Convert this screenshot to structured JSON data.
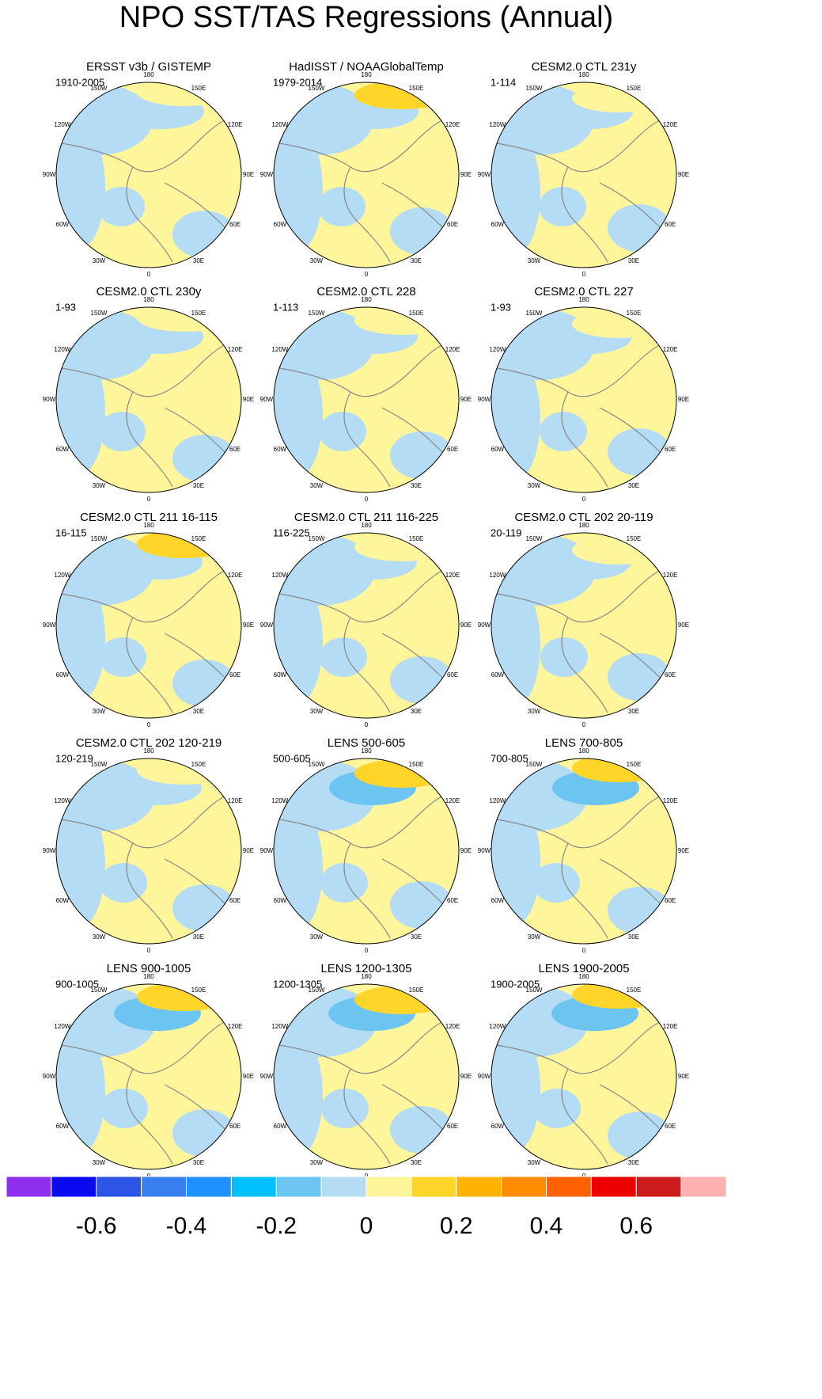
{
  "title": "NPO SST/TAS Regressions (Annual)",
  "panels": [
    {
      "title": "ERSST v3b / GISTEMP",
      "period": "1910-2005"
    },
    {
      "title": "HadISST / NOAAGlobalTemp",
      "period": "1979-2014"
    },
    {
      "title": "CESM2.0 CTL 231y",
      "period": "1-114"
    },
    {
      "title": "CESM2.0 CTL 230y",
      "period": "1-93"
    },
    {
      "title": "CESM2.0 CTL 228",
      "period": "1-113"
    },
    {
      "title": "CESM2.0 CTL 227",
      "period": "1-93"
    },
    {
      "title": "CESM2.0 CTL 211 16-115",
      "period": "16-115"
    },
    {
      "title": "CESM2.0 CTL 211 116-225",
      "period": "116-225"
    },
    {
      "title": "CESM2.0 CTL 202 20-119",
      "period": "20-119"
    },
    {
      "title": "CESM2.0 CTL 202 120-219",
      "period": "120-219"
    },
    {
      "title": "LENS 500-605",
      "period": "500-605"
    },
    {
      "title": "LENS 700-805",
      "period": "700-805"
    },
    {
      "title": "LENS 900-1005",
      "period": "900-1005"
    },
    {
      "title": "LENS 1200-1305",
      "period": "1200-1305"
    },
    {
      "title": "LENS 1900-2005",
      "period": "1900-2005"
    }
  ],
  "lon_labels": [
    "180",
    "150E",
    "120E",
    "90E",
    "60E",
    "30E",
    "0",
    "30W",
    "60W",
    "90W",
    "120W",
    "150W"
  ],
  "colorbar": {
    "colors": [
      "#8e2ff0",
      "#0a0af0",
      "#2c55e8",
      "#3a7ff0",
      "#1e90ff",
      "#00bfff",
      "#6cc5f0",
      "#b4dcf5",
      "#fff59a",
      "#ffd52a",
      "#ffb300",
      "#ff8c00",
      "#ff6000",
      "#ee0000",
      "#cc1b1b",
      "#ffb0b0"
    ],
    "lim": [
      -0.8,
      0.8
    ],
    "ticks": [
      -0.6,
      -0.4,
      -0.2,
      0,
      0.2,
      0.4,
      0.6
    ]
  }
}
